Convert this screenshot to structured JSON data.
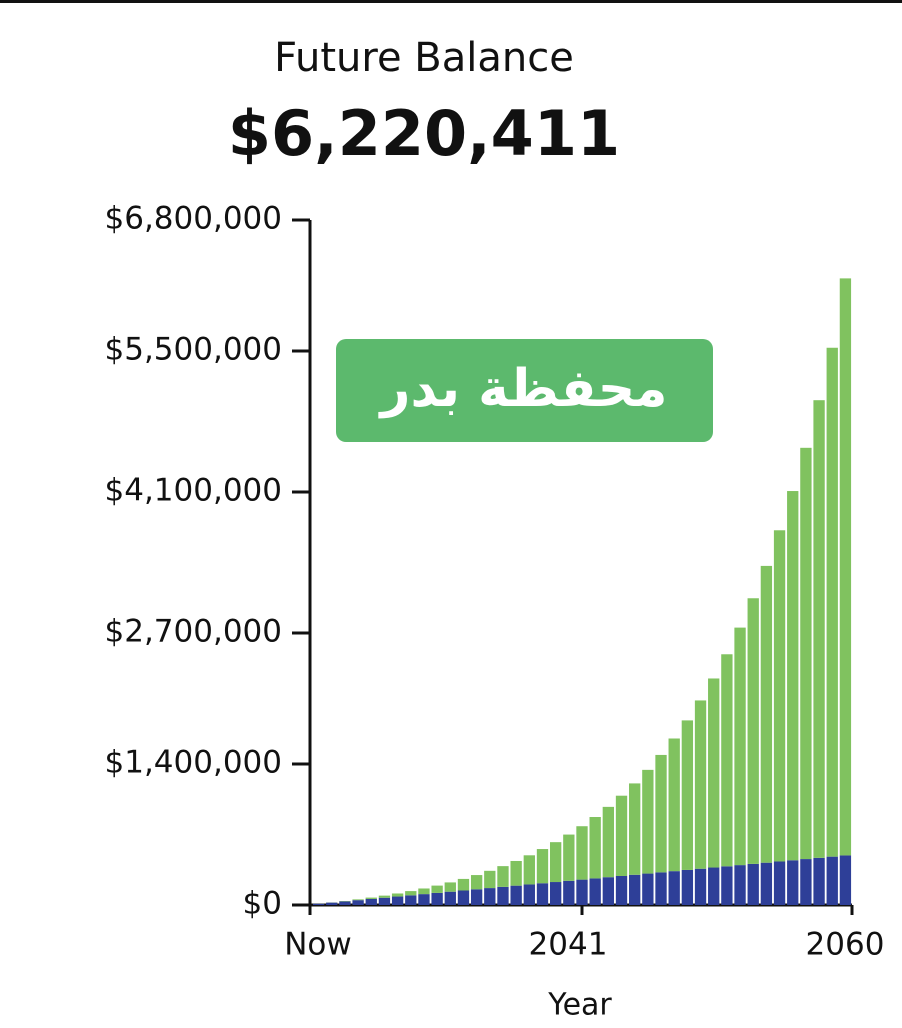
{
  "chart_data": {
    "type": "stacked_bar",
    "title": "Future Balance",
    "subtitle": "$6,220,411",
    "x_label": "Year",
    "annotation": "محفظة بدر",
    "categories": [
      "Now",
      null,
      null,
      null,
      null,
      null,
      null,
      null,
      null,
      null,
      null,
      null,
      null,
      null,
      null,
      null,
      null,
      null,
      null,
      null,
      "2041",
      null,
      null,
      null,
      null,
      null,
      null,
      null,
      null,
      null,
      null,
      null,
      null,
      null,
      null,
      null,
      null,
      null,
      null,
      null,
      "2060"
    ],
    "series": [
      {
        "color": "#2e3f98",
        "values": [
          12000,
          24000,
          36000,
          48000,
          60000,
          72000,
          84000,
          96000,
          108000,
          120000,
          132000,
          144000,
          156000,
          168000,
          180000,
          192000,
          204000,
          216000,
          228000,
          240000,
          252000,
          264000,
          276000,
          288000,
          300000,
          312000,
          324000,
          336000,
          348000,
          360000,
          372000,
          384000,
          396000,
          408000,
          420000,
          432000,
          444000,
          456000,
          468000,
          480000,
          492000
        ]
      },
      {
        "color": "#80c25f",
        "values": [
          600,
          1200,
          3790,
          7810,
          13480,
          20940,
          30380,
          42000,
          56000,
          72620,
          92180,
          114930,
          141210,
          171370,
          205830,
          244990,
          289330,
          339440,
          395810,
          459120,
          530070,
          609470,
          698120,
          797000,
          907000,
          1029500,
          1165700,
          1316900,
          1484600,
          1670700,
          1876700,
          2105000,
          2357700,
          2637100,
          2946200,
          3287900,
          3665400,
          4082500,
          4543200,
          5051800,
          5728411
        ]
      }
    ],
    "ylim": [
      0,
      6800000
    ],
    "yticks": [
      {
        "value": 0,
        "label": "$0"
      },
      {
        "value": 1400000,
        "label": "$1,400,000"
      },
      {
        "value": 2700000,
        "label": "$2,700,000"
      },
      {
        "value": 4100000,
        "label": "$4,100,000"
      },
      {
        "value": 5500000,
        "label": "$5,500,000"
      },
      {
        "value": 6800000,
        "label": "$6,800,000"
      }
    ],
    "grid": false
  }
}
